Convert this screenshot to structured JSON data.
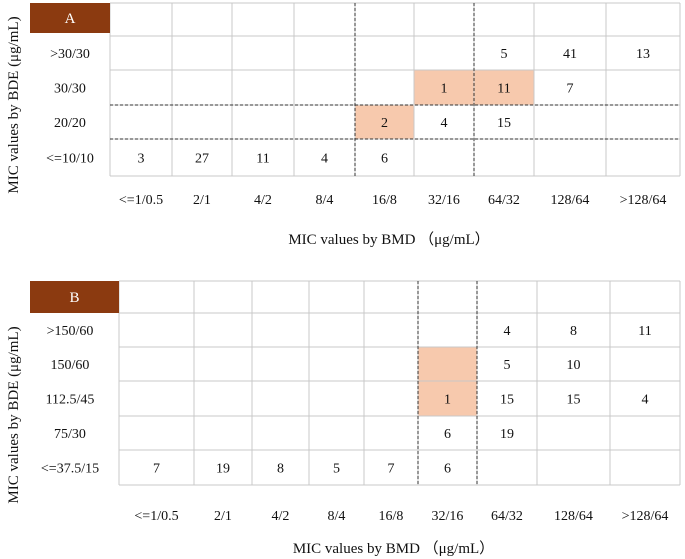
{
  "colors": {
    "panel_label_bg": "#8b3a10",
    "highlight": "#f7c9ad",
    "grid": "#c8c8c8",
    "divider": "#333333"
  },
  "chart_data": [
    {
      "type": "table",
      "panel_label": "A",
      "xlabel": "MIC values by BMD  （μg/mL）",
      "ylabel": "MIC values by BDE (μg/mL)",
      "x_categories": [
        "<=1/0.5",
        "2/1",
        "4/2",
        "8/4",
        "16/8",
        "32/16",
        "64/32",
        "128/64",
        ">128/64"
      ],
      "y_categories": [
        ">30/30",
        "30/30",
        "20/20",
        "<=10/10"
      ],
      "cells": [
        {
          "row": 0,
          "col": 6,
          "value": "5"
        },
        {
          "row": 0,
          "col": 7,
          "value": "41"
        },
        {
          "row": 0,
          "col": 8,
          "value": "13"
        },
        {
          "row": 1,
          "col": 5,
          "value": "1"
        },
        {
          "row": 1,
          "col": 6,
          "value": "11"
        },
        {
          "row": 1,
          "col": 7,
          "value": "7"
        },
        {
          "row": 2,
          "col": 4,
          "value": "2"
        },
        {
          "row": 2,
          "col": 5,
          "value": "4",
          "highlight": true
        },
        {
          "row": 2,
          "col": 6,
          "value": "15",
          "highlight": true
        },
        {
          "row": 3,
          "col": 0,
          "value": "3"
        },
        {
          "row": 3,
          "col": 1,
          "value": "27"
        },
        {
          "row": 3,
          "col": 2,
          "value": "11"
        },
        {
          "row": 3,
          "col": 3,
          "value": "4"
        },
        {
          "row": 3,
          "col": 4,
          "value": "6",
          "highlight": true
        }
      ]
    },
    {
      "type": "table",
      "panel_label": "B",
      "xlabel": "MIC values by BMD  （μg/mL）",
      "ylabel": "MIC values by BDE (μg/mL)",
      "x_categories": [
        "<=1/0.5",
        "2/1",
        "4/2",
        "8/4",
        "16/8",
        "32/16",
        "64/32",
        "128/64",
        ">128/64"
      ],
      "y_categories": [
        ">150/60",
        "150/60",
        "112.5/45",
        "75/30",
        "<=37.5/15"
      ],
      "cells": [
        {
          "row": 0,
          "col": 6,
          "value": "4"
        },
        {
          "row": 0,
          "col": 7,
          "value": "8"
        },
        {
          "row": 0,
          "col": 8,
          "value": "11"
        },
        {
          "row": 1,
          "col": 6,
          "value": "5"
        },
        {
          "row": 1,
          "col": 7,
          "value": "10"
        },
        {
          "row": 2,
          "col": 5,
          "value": "1",
          "highlight": true
        },
        {
          "row": 2,
          "col": 6,
          "value": "15"
        },
        {
          "row": 2,
          "col": 7,
          "value": "15"
        },
        {
          "row": 2,
          "col": 8,
          "value": "4"
        },
        {
          "row": 3,
          "col": 5,
          "value": "6",
          "highlight": true
        },
        {
          "row": 3,
          "col": 6,
          "value": "19"
        },
        {
          "row": 4,
          "col": 0,
          "value": "7"
        },
        {
          "row": 4,
          "col": 1,
          "value": "19"
        },
        {
          "row": 4,
          "col": 2,
          "value": "8"
        },
        {
          "row": 4,
          "col": 3,
          "value": "5"
        },
        {
          "row": 4,
          "col": 4,
          "value": "7"
        },
        {
          "row": 4,
          "col": 5,
          "value": "6"
        }
      ]
    }
  ]
}
